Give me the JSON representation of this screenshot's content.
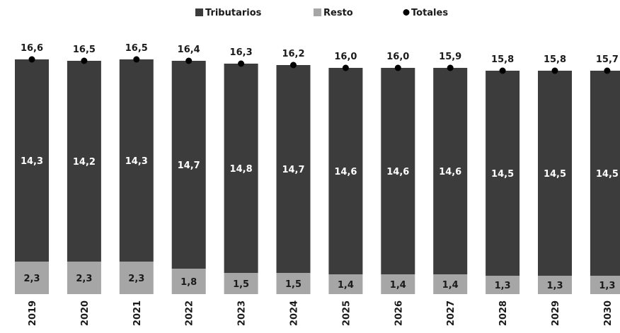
{
  "chart_data": {
    "type": "bar",
    "stacked": true,
    "categories": [
      "2019",
      "2020",
      "2021",
      "2022",
      "2023",
      "2024",
      "2025",
      "2026",
      "2027",
      "2028",
      "2029",
      "2030"
    ],
    "series": [
      {
        "name": "Tributarios",
        "values": [
          14.3,
          14.2,
          14.3,
          14.7,
          14.8,
          14.7,
          14.6,
          14.6,
          14.6,
          14.5,
          14.5,
          14.5
        ],
        "labels": [
          "14,3",
          "14,2",
          "14,3",
          "14,7",
          "14,8",
          "14,7",
          "14,6",
          "14,6",
          "14,6",
          "14,5",
          "14,5",
          "14,5"
        ],
        "color": "#3c3c3c"
      },
      {
        "name": "Resto",
        "values": [
          2.3,
          2.3,
          2.3,
          1.8,
          1.5,
          1.5,
          1.4,
          1.4,
          1.4,
          1.3,
          1.3,
          1.3
        ],
        "labels": [
          "2,3",
          "2,3",
          "2,3",
          "1,8",
          "1,5",
          "1,5",
          "1,4",
          "1,4",
          "1,4",
          "1,3",
          "1,3",
          "1,3"
        ],
        "color": "#a6a6a6"
      },
      {
        "name": "Totales",
        "type": "marker",
        "values": [
          16.6,
          16.5,
          16.5,
          16.4,
          16.3,
          16.2,
          16.0,
          16.0,
          15.9,
          15.8,
          15.8,
          15.7
        ],
        "labels": [
          "16,6",
          "16,5",
          "16,5",
          "16,4",
          "16,3",
          "16,2",
          "16,0",
          "16,0",
          "15,9",
          "15,8",
          "15,8",
          "15,7"
        ],
        "color": "#000000"
      }
    ],
    "legend": {
      "position": "top-center",
      "items": [
        "Tributarios",
        "Resto",
        "Totales"
      ]
    },
    "title": "",
    "xlabel": "",
    "ylabel": "",
    "ylim": [
      0,
      17.5
    ],
    "grid": false
  }
}
